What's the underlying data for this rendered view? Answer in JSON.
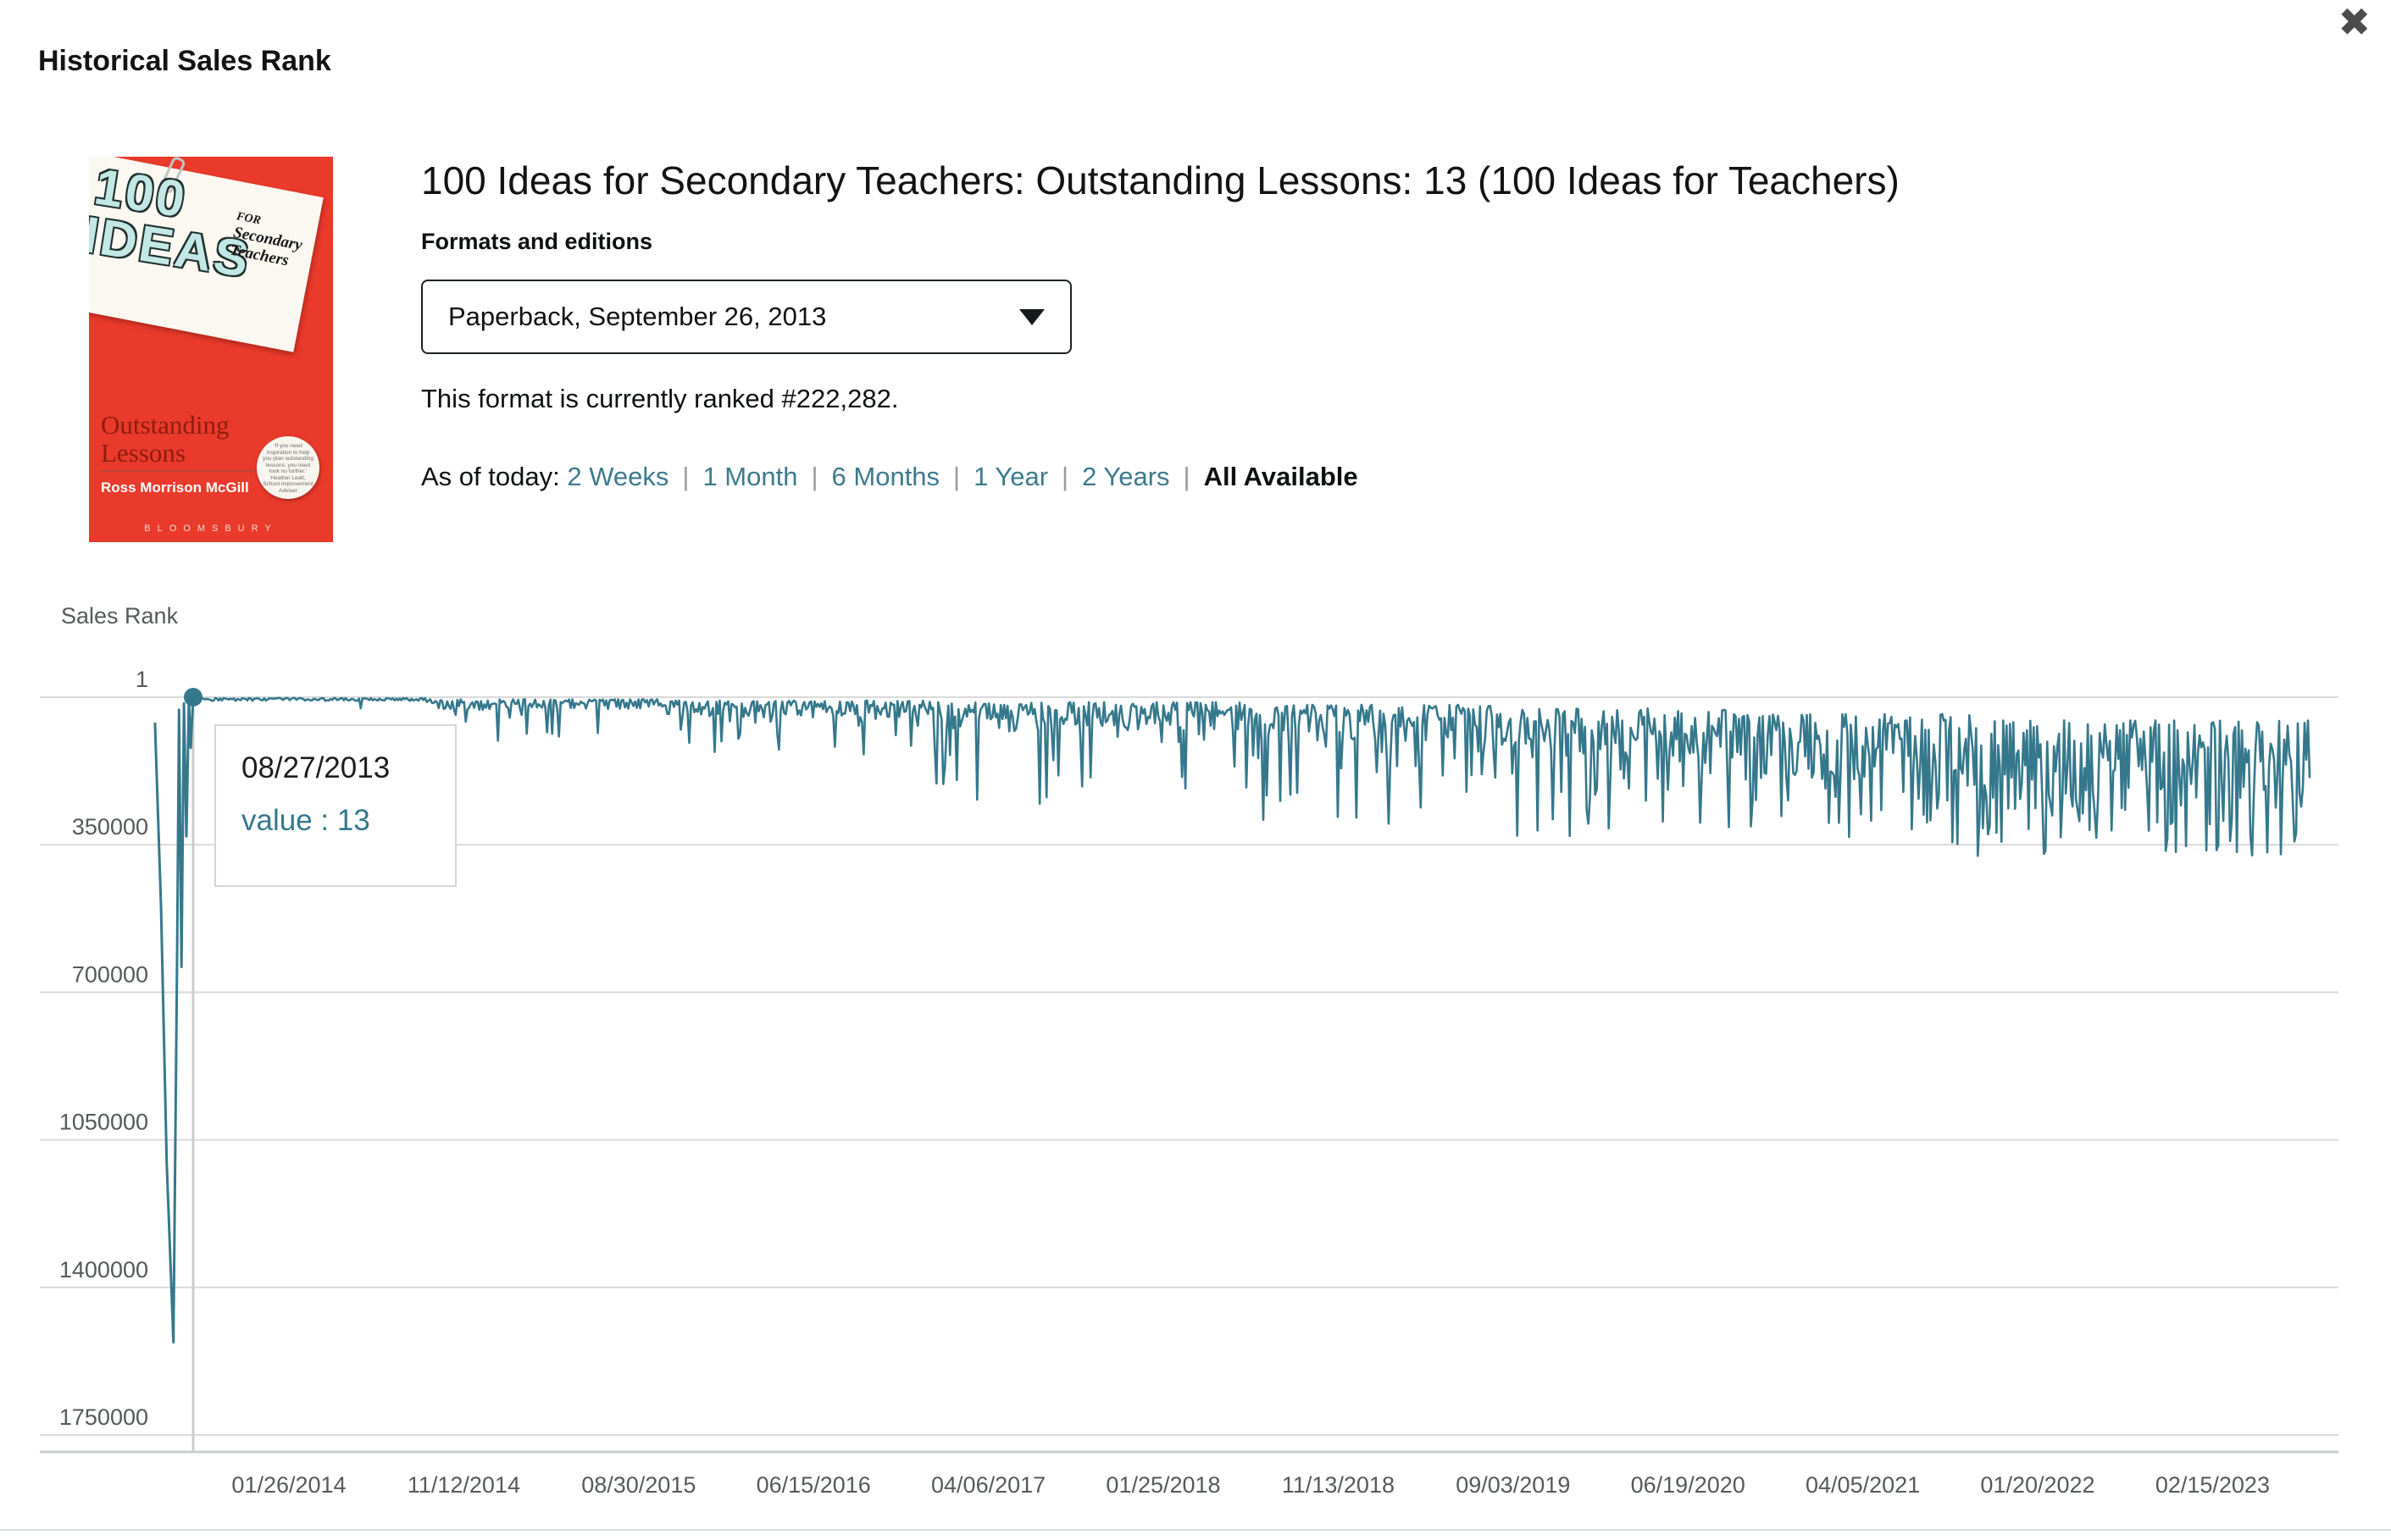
{
  "modal": {
    "title": "Historical Sales Rank",
    "close_glyph": "✖"
  },
  "book": {
    "title": "100 Ideas for Secondary Teachers: Outstanding Lessons: 13 (100 Ideas for Teachers)",
    "formats_label": "Formats and editions",
    "format_selected": "Paperback, September 26, 2013",
    "rank_line": "This format is currently ranked #222,282.",
    "cover": {
      "big1": "100",
      "big2": "IDEAS",
      "small1": "FOR",
      "small2": "Secondary",
      "small3": "Teachers",
      "subtitle1": "Outstanding",
      "subtitle2": "Lessons",
      "author": "Ross Morrison McGill",
      "publisher": "BLOOMSBURY",
      "badge_text": "'If you need inspiration to help you plan outstanding lessons, you need look no further.' Heather Leatt, School Improvement Adviser",
      "colors": {
        "background": "#E93A2B",
        "card": "#FAF8F1",
        "letters": "#C3E7E4",
        "subtitle": "#8F1C10"
      }
    }
  },
  "range_selector": {
    "prefix": "As of today:",
    "separator": "|",
    "options": [
      {
        "label": "2 Weeks",
        "selected": false
      },
      {
        "label": "1 Month",
        "selected": false
      },
      {
        "label": "6 Months",
        "selected": false
      },
      {
        "label": "1 Year",
        "selected": false
      },
      {
        "label": "2 Years",
        "selected": false
      },
      {
        "label": "All Available",
        "selected": true
      }
    ]
  },
  "chart_data": {
    "type": "line",
    "title": "",
    "ylabel": "Sales Rank",
    "series_name": "Sales Rank",
    "line_color": "#35788C",
    "grid_color": "#D9D9D9",
    "crosshair_color": "#CCCCCC",
    "y_axis_inverted": true,
    "y_range": [
      1,
      1750000
    ],
    "y_ticks": [
      "1",
      "350000",
      "700000",
      "1050000",
      "1400000",
      "1750000"
    ],
    "y_tick_values": [
      1,
      350000,
      700000,
      1050000,
      1400000,
      1750000
    ],
    "x_tick_labels": [
      "01/26/2014",
      "11/12/2014",
      "08/30/2015",
      "06/15/2016",
      "04/06/2017",
      "01/25/2018",
      "11/13/2018",
      "09/03/2019",
      "06/19/2020",
      "04/05/2021",
      "01/20/2022",
      "02/15/2023"
    ],
    "highlight": {
      "date": "08/27/2013",
      "value": 13,
      "tooltip_value_label": "value : 13"
    },
    "lead_in_days_value": [
      [
        -62,
        60000
      ],
      [
        -52,
        500000
      ],
      [
        -43,
        1100000
      ],
      [
        -32,
        1530000
      ],
      [
        -26,
        600000
      ],
      [
        -23,
        30000
      ],
      [
        -19,
        640000
      ],
      [
        -15,
        15000
      ],
      [
        -11,
        330000
      ],
      [
        -7,
        8000
      ],
      [
        -4,
        120000
      ],
      [
        0,
        13
      ]
    ],
    "noise_bands": [
      {
        "to_frac": 0.11,
        "base": 2000,
        "amp": 7000,
        "spike_p": 0.02,
        "spike_max": 40000
      },
      {
        "to_frac": 0.22,
        "base": 5000,
        "amp": 25000,
        "spike_p": 0.08,
        "spike_max": 110000
      },
      {
        "to_frac": 0.35,
        "base": 8000,
        "amp": 40000,
        "spike_p": 0.1,
        "spike_max": 140000
      },
      {
        "to_frac": 0.5,
        "base": 12000,
        "amp": 70000,
        "spike_p": 0.14,
        "spike_max": 260000
      },
      {
        "to_frac": 0.62,
        "base": 18000,
        "amp": 90000,
        "spike_p": 0.16,
        "spike_max": 300000
      },
      {
        "to_frac": 0.74,
        "base": 25000,
        "amp": 120000,
        "spike_p": 0.18,
        "spike_max": 330000
      },
      {
        "to_frac": 0.84,
        "base": 40000,
        "amp": 160000,
        "spike_p": 0.2,
        "spike_max": 350000
      },
      {
        "to_frac": 1.0,
        "base": 55000,
        "amp": 200000,
        "spike_p": 0.22,
        "spike_max": 385000
      }
    ],
    "deep_dip_events": [
      [
        0.565,
        300000
      ],
      [
        0.874,
        372000
      ],
      [
        0.98,
        368000
      ]
    ]
  }
}
